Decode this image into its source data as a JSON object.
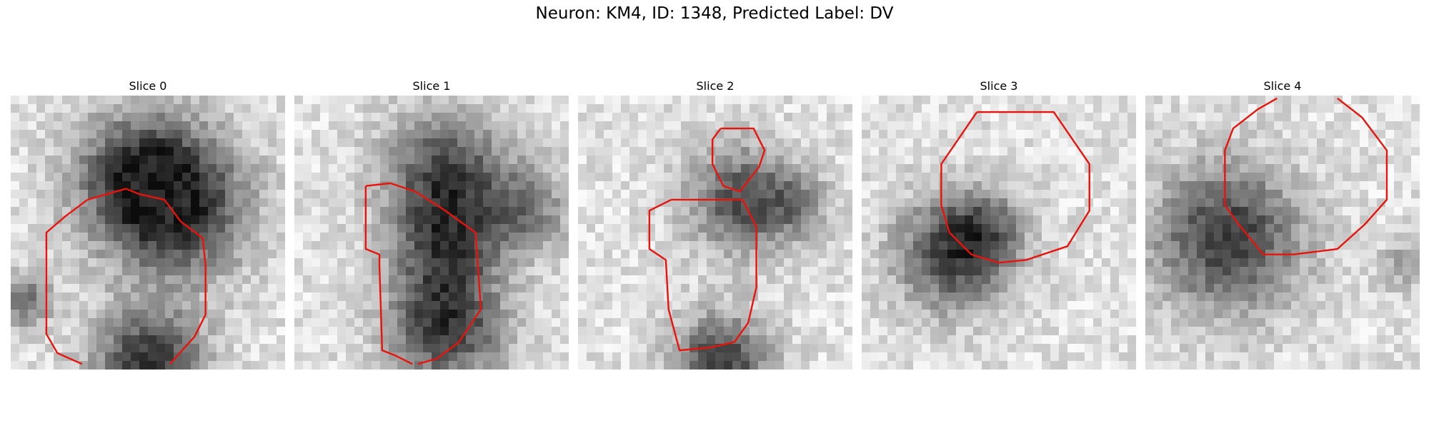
{
  "figure": {
    "title": "Neuron: KM4, ID: 1348, Predicted Label: DV"
  },
  "panels": [
    {
      "title": "Slice 0",
      "seed": 11,
      "blobs": [
        [
          0.48,
          0.3,
          0.3,
          0.78
        ],
        [
          0.62,
          0.42,
          0.32,
          0.7
        ],
        [
          0.5,
          0.98,
          0.25,
          0.85
        ],
        [
          0.05,
          0.75,
          0.12,
          0.55
        ]
      ]
    },
    {
      "title": "Slice 1",
      "seed": 23,
      "blobs": [
        [
          0.55,
          0.28,
          0.28,
          0.7
        ],
        [
          0.55,
          0.55,
          0.25,
          0.62
        ],
        [
          0.55,
          0.85,
          0.26,
          0.8
        ],
        [
          0.85,
          0.42,
          0.2,
          0.45
        ]
      ]
    },
    {
      "title": "Slice 2",
      "seed": 37,
      "blobs": [
        [
          0.6,
          0.38,
          0.24,
          0.7
        ],
        [
          0.52,
          0.98,
          0.22,
          0.8
        ],
        [
          0.8,
          0.4,
          0.15,
          0.35
        ]
      ]
    },
    {
      "title": "Slice 3",
      "seed": 41,
      "blobs": [
        [
          0.33,
          0.58,
          0.26,
          0.75
        ],
        [
          0.45,
          0.48,
          0.18,
          0.4
        ]
      ]
    },
    {
      "title": "Slice 4",
      "seed": 53,
      "blobs": [
        [
          0.3,
          0.52,
          0.33,
          0.8
        ],
        [
          0.95,
          0.62,
          0.12,
          0.3
        ]
      ]
    }
  ],
  "contours": [
    [
      [
        [
          0.28,
          0.38
        ],
        [
          0.42,
          0.34
        ],
        [
          0.47,
          0.36
        ],
        [
          0.56,
          0.38
        ],
        [
          0.62,
          0.46
        ],
        [
          0.7,
          0.52
        ],
        [
          0.71,
          0.62
        ],
        [
          0.71,
          0.8
        ],
        [
          0.67,
          0.88
        ],
        [
          0.58,
          0.98
        ]
      ],
      [
        [
          0.26,
          0.98
        ],
        [
          0.17,
          0.94
        ],
        [
          0.13,
          0.87
        ],
        [
          0.13,
          0.5
        ],
        [
          0.2,
          0.44
        ],
        [
          0.28,
          0.38
        ]
      ]
    ],
    [
      [
        [
          0.26,
          0.33
        ],
        [
          0.35,
          0.32
        ],
        [
          0.44,
          0.35
        ],
        [
          0.55,
          0.42
        ],
        [
          0.66,
          0.5
        ],
        [
          0.68,
          0.78
        ],
        [
          0.6,
          0.9
        ],
        [
          0.52,
          0.96
        ],
        [
          0.45,
          0.98
        ]
      ],
      [
        [
          0.43,
          0.98
        ],
        [
          0.37,
          0.95
        ],
        [
          0.32,
          0.93
        ],
        [
          0.31,
          0.62
        ],
        [
          0.31,
          0.58
        ],
        [
          0.26,
          0.56
        ],
        [
          0.26,
          0.33
        ]
      ]
    ],
    [
      [
        [
          0.52,
          0.12
        ],
        [
          0.64,
          0.12
        ],
        [
          0.68,
          0.2
        ],
        [
          0.66,
          0.26
        ],
        [
          0.59,
          0.35
        ],
        [
          0.53,
          0.33
        ],
        [
          0.49,
          0.25
        ],
        [
          0.49,
          0.16
        ],
        [
          0.52,
          0.12
        ]
      ],
      [
        [
          0.34,
          0.38
        ],
        [
          0.6,
          0.38
        ],
        [
          0.65,
          0.48
        ],
        [
          0.65,
          0.7
        ],
        [
          0.62,
          0.83
        ],
        [
          0.57,
          0.9
        ],
        [
          0.48,
          0.92
        ],
        [
          0.37,
          0.93
        ],
        [
          0.33,
          0.78
        ],
        [
          0.32,
          0.6
        ],
        [
          0.26,
          0.56
        ],
        [
          0.26,
          0.42
        ],
        [
          0.34,
          0.38
        ]
      ]
    ],
    [
      [
        [
          0.42,
          0.06
        ],
        [
          0.7,
          0.06
        ],
        [
          0.83,
          0.25
        ],
        [
          0.83,
          0.42
        ],
        [
          0.75,
          0.55
        ],
        [
          0.6,
          0.6
        ],
        [
          0.5,
          0.61
        ],
        [
          0.4,
          0.58
        ],
        [
          0.32,
          0.5
        ],
        [
          0.29,
          0.4
        ],
        [
          0.29,
          0.25
        ],
        [
          0.42,
          0.06
        ]
      ]
    ],
    [
      [
        [
          0.48,
          0.01
        ],
        [
          0.41,
          0.05
        ],
        [
          0.32,
          0.12
        ],
        [
          0.29,
          0.2
        ],
        [
          0.29,
          0.4
        ],
        [
          0.34,
          0.47
        ],
        [
          0.43,
          0.58
        ],
        [
          0.54,
          0.58
        ],
        [
          0.7,
          0.56
        ],
        [
          0.8,
          0.47
        ],
        [
          0.88,
          0.38
        ],
        [
          0.88,
          0.2
        ],
        [
          0.79,
          0.08
        ],
        [
          0.7,
          0.01
        ]
      ]
    ]
  ]
}
